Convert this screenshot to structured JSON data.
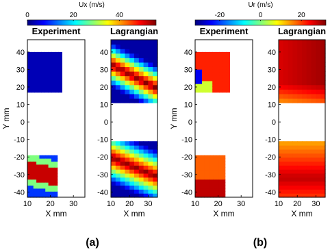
{
  "colors": {
    "jet": [
      "#00007f",
      "#0000ff",
      "#007fff",
      "#00ffff",
      "#7fff7f",
      "#ffff00",
      "#ff7f00",
      "#ff0000",
      "#7f0000"
    ]
  },
  "chart_data": [
    {
      "type": "heatmap",
      "panel_label": "(a)",
      "colorbar": {
        "title": "Ux (m/s)",
        "range": [
          0,
          56
        ],
        "ticks": [
          0,
          20,
          40
        ],
        "tick_labels": [
          "0",
          "20",
          "40"
        ]
      },
      "subplots": [
        {
          "title": "Experiment",
          "xlabel": "X mm",
          "ylabel": "Y mm",
          "xlim": [
            10,
            35
          ],
          "ylim": [
            -43,
            47
          ],
          "xticks": [
            10,
            20,
            30
          ],
          "yticks": [
            -40,
            -30,
            -20,
            -10,
            0,
            10,
            20,
            30,
            40
          ],
          "regions": [
            {
              "x": [
                10,
                25
              ],
              "y": [
                17,
                40
              ]
            },
            {
              "x": [
                10,
                23
              ],
              "y": [
                -43,
                -19
              ]
            }
          ]
        },
        {
          "title": "Lagrangian",
          "xlabel": "X mm",
          "ylabel": "",
          "xlim": [
            10,
            35
          ],
          "ylim": [
            -43,
            47
          ],
          "xticks": [
            10,
            20,
            30
          ],
          "yticks": [
            -40,
            -30,
            -20,
            -10,
            0,
            10,
            20,
            30,
            40
          ],
          "regions": [
            {
              "x": [
                10,
                35
              ],
              "y": [
                11,
                47
              ]
            },
            {
              "x": [
                10,
                35
              ],
              "y": [
                -43,
                -11
              ]
            }
          ]
        }
      ]
    },
    {
      "type": "heatmap",
      "panel_label": "(b)",
      "colorbar": {
        "title": "Ur (m/s)",
        "range": [
          -32,
          32
        ],
        "ticks": [
          -20,
          0,
          20
        ],
        "tick_labels": [
          "-20",
          "0",
          "20"
        ]
      },
      "subplots": [
        {
          "title": "Experiment",
          "xlabel": "X mm",
          "ylabel": "Y mm",
          "xlim": [
            10,
            35
          ],
          "ylim": [
            -43,
            47
          ],
          "xticks": [
            10,
            20,
            30
          ],
          "yticks": [
            -40,
            -30,
            -20,
            -10,
            0,
            10,
            20,
            30,
            40
          ],
          "regions": [
            {
              "x": [
                10,
                25
              ],
              "y": [
                17,
                40
              ]
            },
            {
              "x": [
                10,
                23
              ],
              "y": [
                -43,
                -19
              ]
            }
          ]
        },
        {
          "title": "Lagrangian",
          "xlabel": "X mm",
          "ylabel": "",
          "xlim": [
            10,
            35
          ],
          "ylim": [
            -43,
            47
          ],
          "xticks": [
            10,
            20,
            30
          ],
          "yticks": [
            -40,
            -30,
            -20,
            -10,
            0,
            10,
            20,
            30,
            40
          ],
          "regions": [
            {
              "x": [
                10,
                35
              ],
              "y": [
                11,
                47
              ]
            },
            {
              "x": [
                10,
                35
              ],
              "y": [
                -43,
                -11
              ]
            }
          ]
        }
      ]
    }
  ]
}
